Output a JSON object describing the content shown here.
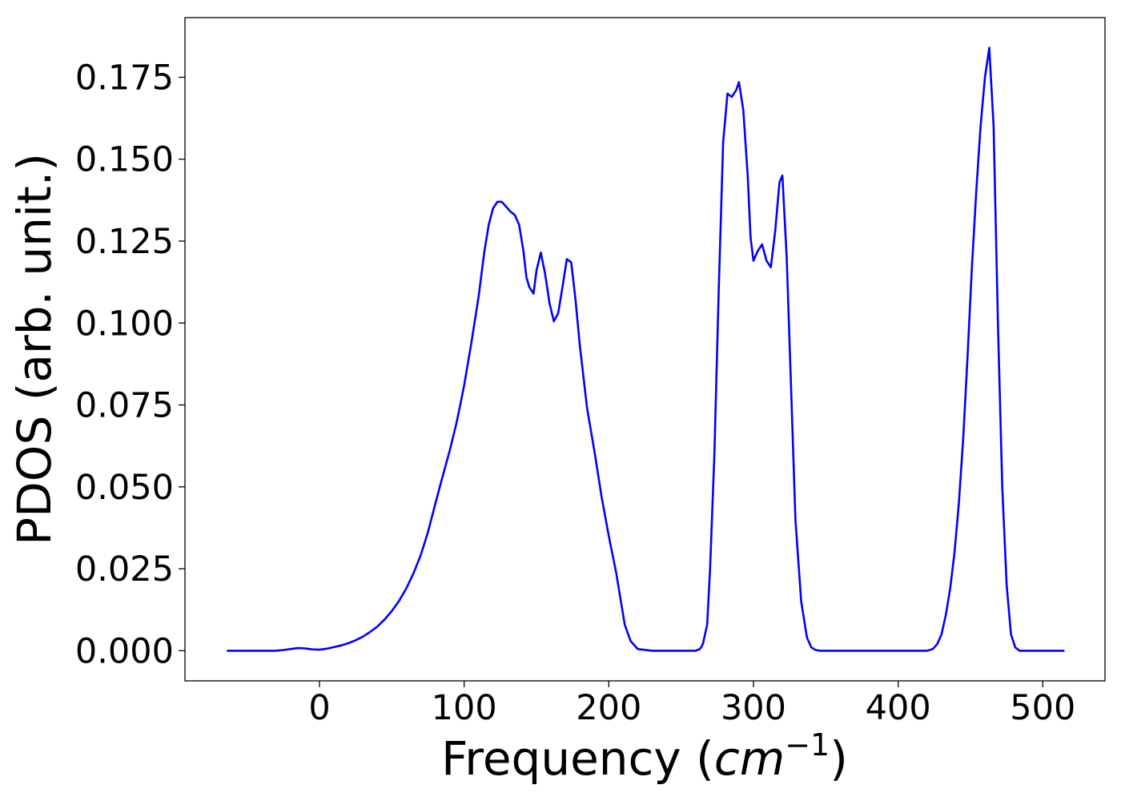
{
  "chart_data": {
    "type": "line",
    "title": "",
    "xlabel_prefix": "Frequency (",
    "xlabel_unit": "cm",
    "xlabel_exp": "−1",
    "xlabel_suffix": ")",
    "ylabel": "PDOS (arb. unit.)",
    "xlim": [
      -93,
      543
    ],
    "ylim": [
      -0.0092,
      0.1932
    ],
    "xticks": [
      0,
      100,
      200,
      300,
      400,
      500
    ],
    "xtick_labels": [
      "0",
      "100",
      "200",
      "300",
      "400",
      "500"
    ],
    "yticks": [
      0,
      0.025,
      0.05,
      0.075,
      0.1,
      0.125,
      0.15,
      0.175
    ],
    "ytick_labels": [
      "0.000",
      "0.025",
      "0.050",
      "0.075",
      "0.100",
      "0.125",
      "0.150",
      "0.175"
    ],
    "grid": false,
    "legend": false,
    "series": [
      {
        "color": "#0000ff",
        "x": [
          -64,
          -30,
          -25,
          -20,
          -15,
          -10,
          -5,
          0,
          5,
          10,
          15,
          20,
          25,
          30,
          35,
          40,
          45,
          50,
          55,
          60,
          65,
          70,
          75,
          80,
          85,
          90,
          95,
          100,
          105,
          110,
          114,
          117,
          120,
          123,
          126,
          129,
          132,
          135,
          138,
          141,
          143,
          145,
          148,
          150,
          153,
          156,
          159,
          162,
          165,
          168,
          171,
          174,
          177,
          180,
          185,
          190,
          195,
          200,
          205,
          208,
          211,
          215,
          220,
          230,
          240,
          250,
          260,
          263,
          265,
          268,
          270,
          273,
          276,
          279,
          282,
          285,
          288,
          290,
          293,
          296,
          298,
          300,
          303,
          306,
          309,
          312,
          315,
          318,
          320,
          323,
          326,
          329,
          333,
          337,
          340,
          343,
          346,
          350,
          370,
          400,
          420,
          424,
          427,
          430,
          433,
          436,
          439,
          442,
          445,
          448,
          451,
          454,
          457,
          460,
          463,
          466,
          469,
          472,
          475,
          478,
          481,
          484,
          490,
          500,
          515
        ],
        "y": [
          0,
          0,
          0.0002,
          0.0005,
          0.0008,
          0.0007,
          0.0004,
          0.0003,
          0.0006,
          0.0011,
          0.0016,
          0.0023,
          0.0032,
          0.0043,
          0.0057,
          0.0074,
          0.0095,
          0.0121,
          0.0152,
          0.019,
          0.0236,
          0.0292,
          0.0362,
          0.0447,
          0.053,
          0.061,
          0.07,
          0.081,
          0.094,
          0.108,
          0.122,
          0.13,
          0.135,
          0.137,
          0.137,
          0.1355,
          0.134,
          0.133,
          0.13,
          0.122,
          0.114,
          0.111,
          0.109,
          0.116,
          0.1215,
          0.115,
          0.106,
          0.1005,
          0.103,
          0.111,
          0.1195,
          0.1185,
          0.107,
          0.093,
          0.074,
          0.061,
          0.047,
          0.035,
          0.024,
          0.016,
          0.008,
          0.003,
          0.0005,
          0,
          0,
          0,
          0,
          0.0005,
          0.002,
          0.008,
          0.025,
          0.06,
          0.11,
          0.155,
          0.17,
          0.169,
          0.171,
          0.1735,
          0.165,
          0.145,
          0.126,
          0.119,
          0.122,
          0.124,
          0.119,
          0.117,
          0.128,
          0.143,
          0.145,
          0.12,
          0.08,
          0.04,
          0.015,
          0.004,
          0.001,
          0.0002,
          0,
          0,
          0,
          0,
          0,
          0.0005,
          0.002,
          0.005,
          0.011,
          0.019,
          0.03,
          0.045,
          0.065,
          0.09,
          0.117,
          0.14,
          0.16,
          0.175,
          0.184,
          0.16,
          0.1,
          0.05,
          0.02,
          0.005,
          0.001,
          0,
          0,
          0,
          0
        ]
      }
    ]
  }
}
